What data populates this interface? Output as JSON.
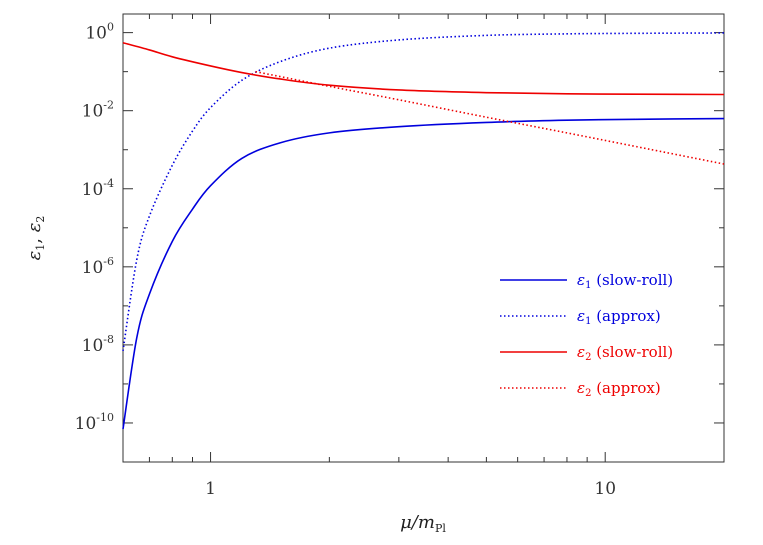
{
  "chart_data": {
    "type": "line",
    "title": "",
    "xlabel": {
      "main": "μ/m",
      "sub": "Pl"
    },
    "ylabel": {
      "e1": "ε",
      "e1_sub": "1",
      "sep": ", ",
      "e2": "ε",
      "e2_sub": "2"
    },
    "xscale": "log",
    "yscale": "log",
    "xlim": [
      0.6,
      20
    ],
    "ylim": [
      1e-11,
      3
    ],
    "x_ticks": [
      {
        "value": 1,
        "label": "1"
      },
      {
        "value": 10,
        "label": "10"
      }
    ],
    "y_ticks": [
      {
        "value": 1,
        "base": "10",
        "exp": "0"
      },
      {
        "value": 0.01,
        "base": "10",
        "exp": "-2"
      },
      {
        "value": 0.0001,
        "base": "10",
        "exp": "-4"
      },
      {
        "value": 1e-06,
        "base": "10",
        "exp": "-6"
      },
      {
        "value": 1e-08,
        "base": "10",
        "exp": "-8"
      },
      {
        "value": 1e-10,
        "base": "10",
        "exp": "-10"
      }
    ],
    "grid": false,
    "legend_position": "right",
    "series": [
      {
        "name": "ε1 (slow-roll)",
        "legend": {
          "sym": "ε",
          "sub": "1",
          "text": "(slow-roll)"
        },
        "color": "#0000dd",
        "dash": "solid",
        "x": [
          0.6,
          0.65,
          0.7,
          0.8,
          0.9,
          1.0,
          1.2,
          1.5,
          2.0,
          3.0,
          5.0,
          8.0,
          12.0,
          20.0
        ],
        "y": [
          7e-11,
          1.5e-08,
          2e-07,
          4.5e-06,
          3e-05,
          0.00012,
          0.0006,
          0.0015,
          0.0027,
          0.0039,
          0.005,
          0.0057,
          0.006,
          0.0063
        ]
      },
      {
        "name": "ε1 (approx)",
        "legend": {
          "sym": "ε",
          "sub": "1",
          "text": "(approx)"
        },
        "color": "#0000dd",
        "dash": "dotted",
        "x": [
          0.6,
          0.65,
          0.7,
          0.8,
          0.9,
          1.0,
          1.2,
          1.5,
          2.0,
          3.0,
          5.0,
          8.0,
          12.0,
          20.0
        ],
        "y": [
          7e-09,
          1.5e-06,
          2e-05,
          0.0004,
          0.003,
          0.012,
          0.06,
          0.18,
          0.4,
          0.65,
          0.85,
          0.93,
          0.96,
          0.98
        ]
      },
      {
        "name": "ε2 (slow-roll)",
        "legend": {
          "sym": "ε",
          "sub": "2",
          "text": "(slow-roll)"
        },
        "color": "#ee0000",
        "dash": "solid",
        "x": [
          0.6,
          0.7,
          0.8,
          1.0,
          1.2,
          1.5,
          2.0,
          3.0,
          5.0,
          8.0,
          12.0,
          20.0
        ],
        "y": [
          0.55,
          0.36,
          0.24,
          0.14,
          0.095,
          0.065,
          0.045,
          0.034,
          0.029,
          0.027,
          0.0265,
          0.026
        ]
      },
      {
        "name": "ε2 (approx)",
        "legend": {
          "sym": "ε",
          "sub": "2",
          "text": "(approx)"
        },
        "color": "#ee0000",
        "dash": "dotted",
        "x": [
          1.3,
          1.5,
          2.0,
          3.0,
          5.0,
          8.0,
          12.0,
          20.0
        ],
        "y": [
          0.1,
          0.075,
          0.042,
          0.019,
          0.0068,
          0.0027,
          0.0012,
          0.00043
        ]
      }
    ]
  }
}
